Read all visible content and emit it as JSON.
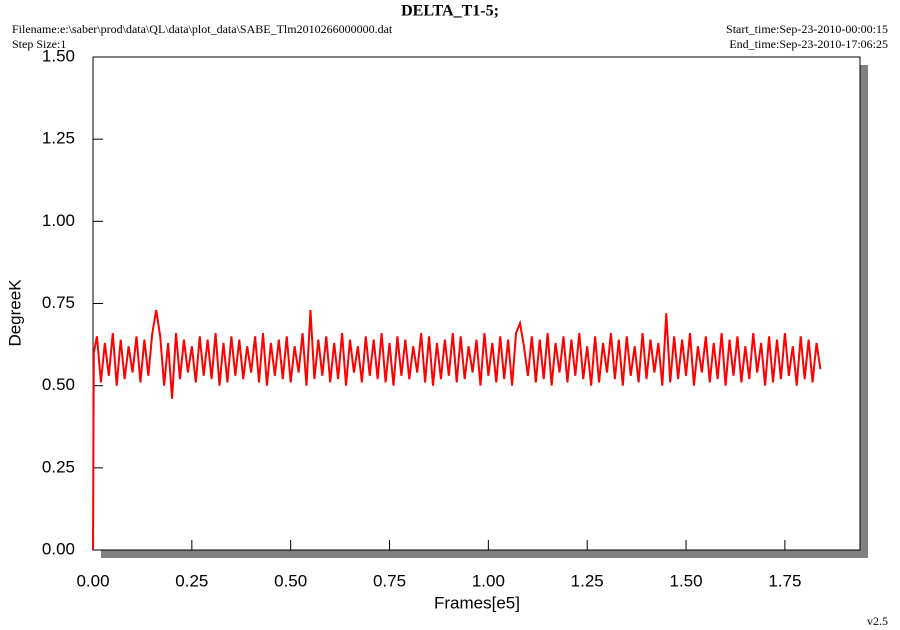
{
  "chart_data": {
    "type": "line",
    "title": "DELTA_T1-5;",
    "filename": "Filename:e:\\saber\\prod\\data\\QL\\data\\plot_data\\SABE_Tlm2010266000000.dat",
    "step_size": "Step Size:1",
    "start_time": "Start_time:Sep-23-2010-00:00:15",
    "end_time": "End_time:Sep-23-2010-17:06:25",
    "version": "v2.5",
    "xlabel": "Frames[e5]",
    "ylabel": "DegreeK",
    "xlim": [
      0,
      1.94
    ],
    "ylim": [
      0,
      1.5
    ],
    "xticks": [
      {
        "value": 0,
        "label": "0.00"
      },
      {
        "value": 0.25,
        "label": "0.25"
      },
      {
        "value": 0.5,
        "label": "0.50"
      },
      {
        "value": 0.75,
        "label": "0.75"
      },
      {
        "value": 1,
        "label": "1.00"
      },
      {
        "value": 1.25,
        "label": "1.25"
      },
      {
        "value": 1.5,
        "label": "1.50"
      },
      {
        "value": 1.75,
        "label": "1.75"
      }
    ],
    "yticks": [
      {
        "value": 0,
        "label": "0.00"
      },
      {
        "value": 0.25,
        "label": "0.25"
      },
      {
        "value": 0.5,
        "label": "0.50"
      },
      {
        "value": 0.75,
        "label": "0.75"
      },
      {
        "value": 1,
        "label": "1.00"
      },
      {
        "value": 1.25,
        "label": "1.25"
      },
      {
        "value": 1.5,
        "label": "1.50"
      }
    ],
    "x": [
      0,
      0.002,
      0.01,
      0.02,
      0.03,
      0.04,
      0.05,
      0.06,
      0.07,
      0.08,
      0.09,
      0.1,
      0.11,
      0.12,
      0.13,
      0.14,
      0.15,
      0.16,
      0.17,
      0.18,
      0.19,
      0.2,
      0.21,
      0.22,
      0.23,
      0.24,
      0.25,
      0.26,
      0.27,
      0.28,
      0.29,
      0.3,
      0.31,
      0.32,
      0.33,
      0.34,
      0.35,
      0.36,
      0.37,
      0.38,
      0.39,
      0.4,
      0.41,
      0.42,
      0.43,
      0.44,
      0.45,
      0.46,
      0.47,
      0.48,
      0.49,
      0.5,
      0.51,
      0.52,
      0.53,
      0.54,
      0.55,
      0.56,
      0.57,
      0.58,
      0.59,
      0.6,
      0.61,
      0.62,
      0.63,
      0.64,
      0.65,
      0.66,
      0.67,
      0.68,
      0.69,
      0.7,
      0.71,
      0.72,
      0.73,
      0.74,
      0.75,
      0.76,
      0.77,
      0.78,
      0.79,
      0.8,
      0.81,
      0.82,
      0.83,
      0.84,
      0.85,
      0.86,
      0.87,
      0.88,
      0.89,
      0.9,
      0.91,
      0.92,
      0.93,
      0.94,
      0.95,
      0.96,
      0.97,
      0.98,
      0.99,
      1,
      1.01,
      1.02,
      1.03,
      1.04,
      1.05,
      1.06,
      1.07,
      1.08,
      1.09,
      1.1,
      1.11,
      1.12,
      1.13,
      1.14,
      1.15,
      1.16,
      1.17,
      1.18,
      1.19,
      1.2,
      1.21,
      1.22,
      1.23,
      1.24,
      1.25,
      1.26,
      1.27,
      1.28,
      1.29,
      1.3,
      1.31,
      1.32,
      1.33,
      1.34,
      1.35,
      1.36,
      1.37,
      1.38,
      1.39,
      1.4,
      1.41,
      1.42,
      1.43,
      1.44,
      1.45,
      1.46,
      1.47,
      1.48,
      1.49,
      1.5,
      1.51,
      1.52,
      1.53,
      1.54,
      1.55,
      1.56,
      1.57,
      1.58,
      1.59,
      1.6,
      1.61,
      1.62,
      1.63,
      1.64,
      1.65,
      1.66,
      1.67,
      1.68,
      1.69,
      1.7,
      1.71,
      1.72,
      1.73,
      1.74,
      1.75,
      1.76,
      1.77,
      1.78,
      1.79,
      1.8,
      1.81,
      1.82,
      1.83,
      1.84
    ],
    "series": [
      {
        "color": "#ff0000",
        "values": [
          0,
          0.6,
          0.65,
          0.51,
          0.63,
          0.53,
          0.66,
          0.5,
          0.64,
          0.52,
          0.62,
          0.54,
          0.65,
          0.51,
          0.64,
          0.53,
          0.66,
          0.73,
          0.65,
          0.5,
          0.63,
          0.46,
          0.66,
          0.52,
          0.64,
          0.54,
          0.62,
          0.51,
          0.65,
          0.53,
          0.64,
          0.52,
          0.66,
          0.5,
          0.63,
          0.51,
          0.65,
          0.53,
          0.64,
          0.52,
          0.62,
          0.54,
          0.65,
          0.51,
          0.66,
          0.5,
          0.63,
          0.53,
          0.64,
          0.52,
          0.65,
          0.51,
          0.62,
          0.54,
          0.66,
          0.5,
          0.73,
          0.52,
          0.64,
          0.53,
          0.65,
          0.51,
          0.63,
          0.52,
          0.66,
          0.5,
          0.64,
          0.54,
          0.62,
          0.51,
          0.65,
          0.53,
          0.64,
          0.52,
          0.66,
          0.51,
          0.63,
          0.5,
          0.65,
          0.53,
          0.64,
          0.52,
          0.62,
          0.54,
          0.66,
          0.51,
          0.65,
          0.5,
          0.63,
          0.52,
          0.64,
          0.53,
          0.66,
          0.51,
          0.65,
          0.52,
          0.62,
          0.54,
          0.64,
          0.5,
          0.66,
          0.53,
          0.63,
          0.51,
          0.65,
          0.52,
          0.64,
          0.5,
          0.66,
          0.69,
          0.62,
          0.53,
          0.65,
          0.51,
          0.64,
          0.52,
          0.66,
          0.5,
          0.63,
          0.54,
          0.65,
          0.51,
          0.64,
          0.53,
          0.66,
          0.52,
          0.62,
          0.5,
          0.65,
          0.51,
          0.63,
          0.54,
          0.66,
          0.52,
          0.64,
          0.5,
          0.65,
          0.53,
          0.62,
          0.51,
          0.66,
          0.52,
          0.64,
          0.54,
          0.63,
          0.5,
          0.72,
          0.51,
          0.65,
          0.52,
          0.64,
          0.53,
          0.66,
          0.5,
          0.62,
          0.54,
          0.65,
          0.51,
          0.63,
          0.52,
          0.66,
          0.5,
          0.64,
          0.53,
          0.65,
          0.51,
          0.62,
          0.52,
          0.66,
          0.54,
          0.63,
          0.5,
          0.65,
          0.51,
          0.64,
          0.52,
          0.66,
          0.53,
          0.62,
          0.5,
          0.65,
          0.52,
          0.64,
          0.51,
          0.63,
          0.55
        ]
      }
    ]
  }
}
